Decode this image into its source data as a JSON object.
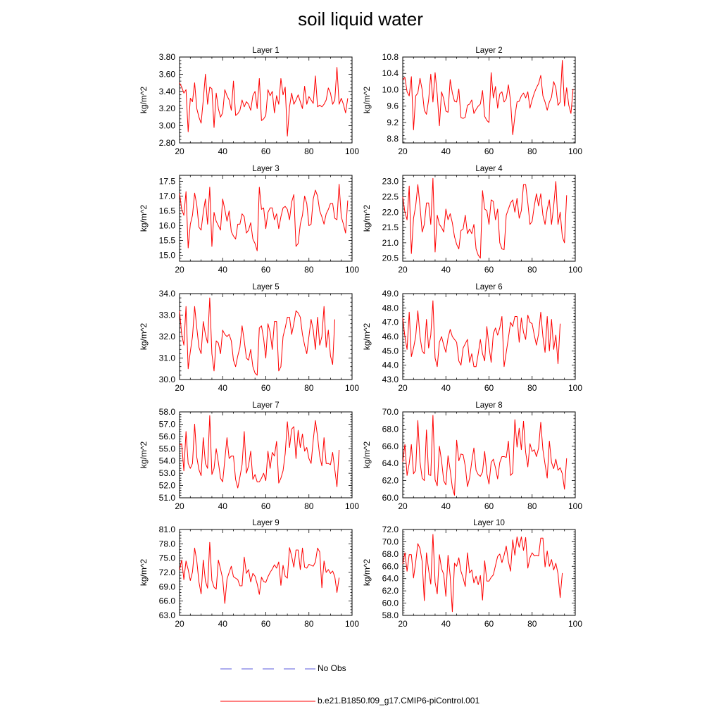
{
  "title": "soil liquid water",
  "legend": [
    {
      "label": "No Obs",
      "color": "#5a5adc",
      "dash": true
    },
    {
      "label": "b.e21.B1850.f09_g17.CMIP6-piControl.001",
      "color": "#ff0000",
      "dash": false
    }
  ],
  "line_color": "#ff0000",
  "chart_data": [
    {
      "type": "line",
      "title": "Layer 1",
      "ylabel": "kg/m^2",
      "xlim": [
        20,
        100
      ],
      "ylim": [
        2.8,
        3.8
      ],
      "xticks": [
        20,
        40,
        60,
        80,
        100
      ],
      "yticks": [
        "2.80",
        "3.00",
        "3.20",
        "3.40",
        "3.60",
        "3.80"
      ],
      "x_start": 20,
      "values": [
        3.5,
        3.45,
        3.38,
        3.42,
        2.93,
        3.32,
        3.28,
        3.5,
        3.2,
        3.1,
        3.03,
        3.3,
        3.6,
        3.25,
        3.45,
        3.43,
        2.98,
        3.38,
        3.2,
        3.1,
        3.15,
        3.42,
        3.35,
        3.3,
        3.18,
        3.52,
        3.12,
        3.14,
        3.18,
        3.3,
        3.22,
        3.28,
        3.25,
        3.18,
        3.35,
        3.4,
        3.2,
        3.55,
        3.06,
        3.08,
        3.12,
        3.42,
        3.35,
        3.4,
        3.15,
        3.35,
        3.25,
        3.55,
        3.36,
        3.45,
        2.88,
        3.22,
        3.38,
        3.25,
        3.3,
        3.36,
        3.28,
        3.2,
        3.46,
        3.25,
        3.34,
        3.3,
        3.26,
        3.58,
        3.22,
        3.24,
        3.22,
        3.25,
        3.3,
        3.44,
        3.38,
        3.25,
        3.3,
        3.68,
        3.25,
        3.32,
        3.25,
        3.15,
        3.32
      ]
    },
    {
      "type": "line",
      "title": "Layer 2",
      "ylabel": "kg/m^2",
      "xlim": [
        20,
        100
      ],
      "ylim": [
        8.7,
        10.8
      ],
      "xticks": [
        20,
        40,
        60,
        80,
        100
      ],
      "yticks": [
        "8.8",
        "9.2",
        "9.6",
        "10.0",
        "10.4",
        "10.8"
      ],
      "x_start": 20,
      "values": [
        10.25,
        10.3,
        9.95,
        9.85,
        10.32,
        9.02,
        9.85,
        9.92,
        10.28,
        10.0,
        9.5,
        9.4,
        9.75,
        10.38,
        9.7,
        10.42,
        9.88,
        9.12,
        9.95,
        9.78,
        9.48,
        9.45,
        10.25,
        9.92,
        9.72,
        9.7,
        10.02,
        9.32,
        9.3,
        9.33,
        9.62,
        9.65,
        9.75,
        9.42,
        9.52,
        9.6,
        9.65,
        9.98,
        9.35,
        9.25,
        9.2,
        10.42,
        9.8,
        10.08,
        9.55,
        9.9,
        9.95,
        9.7,
        9.78,
        10.12,
        9.72,
        8.9,
        9.35,
        9.7,
        9.72,
        9.85,
        9.92,
        9.8,
        9.95,
        9.55,
        9.75,
        9.92,
        10.05,
        10.15,
        10.35,
        9.85,
        9.7,
        9.5,
        9.7,
        9.82,
        10.2,
        10.05,
        9.62,
        9.7,
        10.72,
        9.6,
        10.05,
        9.62,
        9.42,
        10.02
      ]
    },
    {
      "type": "line",
      "title": "Layer 3",
      "ylabel": "kg/m^2",
      "xlim": [
        20,
        100
      ],
      "ylim": [
        14.8,
        17.7
      ],
      "xticks": [
        20,
        40,
        60,
        80,
        100
      ],
      "yticks": [
        "15.0",
        "15.5",
        "16.0",
        "16.5",
        "17.0",
        "17.5"
      ],
      "x_start": 20,
      "values": [
        17.1,
        16.55,
        16.35,
        17.15,
        15.25,
        16.05,
        16.35,
        17.1,
        16.7,
        15.95,
        15.85,
        16.45,
        16.9,
        16.05,
        17.3,
        15.3,
        16.45,
        16.15,
        16.0,
        15.85,
        16.9,
        16.55,
        16.15,
        16.5,
        15.8,
        15.65,
        15.55,
        16.05,
        16.05,
        16.4,
        16.3,
        15.75,
        15.85,
        16.1,
        15.55,
        15.4,
        15.15,
        17.3,
        16.55,
        16.6,
        15.9,
        16.45,
        16.6,
        16.6,
        16.2,
        16.4,
        15.9,
        16.3,
        16.6,
        16.65,
        16.55,
        16.2,
        16.8,
        17.05,
        15.3,
        15.4,
        16.05,
        16.35,
        17.0,
        16.75,
        16.0,
        16.05,
        16.9,
        17.2,
        17.0,
        16.5,
        16.3,
        16.05,
        16.4,
        16.55,
        16.75,
        16.75,
        16.25,
        16.2,
        17.4,
        16.3,
        16.05,
        15.75,
        16.85
      ]
    },
    {
      "type": "line",
      "title": "Layer 4",
      "ylabel": "kg/m^2",
      "xlim": [
        20,
        100
      ],
      "ylim": [
        20.4,
        23.2
      ],
      "xticks": [
        20,
        40,
        60,
        80,
        100
      ],
      "yticks": [
        "20.5",
        "21.0",
        "21.5",
        "22.0",
        "22.5",
        "23.0"
      ],
      "x_start": 20,
      "values": [
        22.5,
        22.0,
        21.75,
        22.85,
        20.65,
        21.8,
        22.2,
        22.9,
        22.2,
        21.35,
        21.6,
        22.3,
        22.3,
        21.6,
        23.1,
        20.7,
        21.9,
        21.6,
        21.5,
        21.35,
        22.1,
        21.75,
        21.95,
        21.65,
        21.2,
        20.95,
        20.8,
        21.4,
        21.45,
        21.9,
        21.3,
        21.45,
        21.3,
        21.6,
        20.8,
        20.6,
        20.5,
        22.7,
        22.1,
        22.05,
        21.6,
        22.4,
        22.35,
        21.75,
        22.1,
        21.0,
        20.8,
        20.78,
        21.9,
        22.1,
        22.3,
        22.4,
        22.0,
        22.45,
        21.8,
        22.05,
        22.9,
        22.9,
        22.3,
        21.6,
        21.7,
        22.2,
        22.6,
        22.2,
        22.6,
        21.9,
        21.6,
        22.1,
        22.4,
        21.6,
        22.2,
        23.0,
        21.6,
        22.0,
        21.2,
        21.0,
        22.55
      ]
    },
    {
      "type": "line",
      "title": "Layer 5",
      "ylabel": "kg/m^2",
      "xlim": [
        20,
        100
      ],
      "ylim": [
        30.0,
        34.0
      ],
      "xticks": [
        20,
        40,
        60,
        80,
        100
      ],
      "yticks": [
        "30.0",
        "31.0",
        "32.0",
        "33.0",
        "34.0"
      ],
      "x_start": 20,
      "values": [
        33.2,
        32.1,
        31.6,
        33.4,
        30.5,
        31.3,
        32.0,
        33.4,
        32.4,
        31.5,
        31.2,
        32.7,
        32.1,
        31.7,
        33.8,
        31.2,
        30.4,
        31.8,
        31.7,
        31.2,
        32.3,
        32.1,
        32.0,
        32.1,
        31.8,
        30.9,
        30.6,
        31.1,
        31.5,
        32.5,
        31.8,
        31.0,
        30.9,
        31.4,
        30.6,
        30.3,
        30.2,
        32.4,
        32.5,
        31.9,
        31.0,
        32.6,
        32.2,
        31.4,
        32.7,
        32.7,
        30.4,
        30.6,
        32.0,
        32.4,
        32.9,
        32.9,
        32.1,
        32.6,
        33.2,
        33.1,
        32.9,
        32.1,
        31.6,
        31.2,
        32.0,
        32.8,
        32.3,
        31.4,
        32.9,
        31.6,
        32.0,
        33.4,
        31.5,
        32.3,
        31.1,
        30.7,
        32.8
      ]
    },
    {
      "type": "line",
      "title": "Layer 6",
      "ylabel": "kg/m^2",
      "xlim": [
        20,
        100
      ],
      "ylim": [
        43.0,
        49.0
      ],
      "xticks": [
        20,
        40,
        60,
        80,
        100
      ],
      "yticks": [
        "43.0",
        "44.0",
        "45.0",
        "46.0",
        "47.0",
        "48.0",
        "49.0"
      ],
      "x_start": 20,
      "values": [
        47.3,
        46.0,
        45.1,
        47.7,
        44.6,
        45.2,
        46.0,
        47.8,
        46.0,
        45.0,
        44.8,
        47.2,
        45.2,
        46.1,
        48.5,
        44.5,
        43.9,
        45.6,
        46.0,
        45.4,
        44.9,
        45.9,
        46.5,
        46.0,
        45.8,
        45.6,
        44.3,
        44.0,
        45.2,
        45.5,
        45.8,
        44.2,
        44.8,
        43.9,
        43.9,
        44.8,
        45.8,
        44.8,
        44.3,
        46.7,
        45.3,
        44.2,
        46.2,
        46.6,
        46.1,
        46.6,
        47.4,
        43.9,
        44.9,
        45.9,
        47.0,
        46.7,
        47.4,
        47.4,
        45.6,
        47.3,
        46.3,
        45.8,
        47.5,
        47.0,
        46.9,
        46.1,
        45.4,
        46.2,
        47.7,
        46.0,
        44.9,
        47.4,
        45.0,
        47.2,
        45.1,
        46.1,
        44.1,
        46.9
      ]
    },
    {
      "type": "line",
      "title": "Layer 7",
      "ylabel": "kg/m^2",
      "xlim": [
        20,
        100
      ],
      "ylim": [
        51.0,
        58.0
      ],
      "xticks": [
        20,
        40,
        60,
        80,
        100
      ],
      "yticks": [
        "51.0",
        "52.0",
        "53.0",
        "54.0",
        "55.0",
        "56.0",
        "57.0",
        "58.0"
      ],
      "x_start": 20,
      "values": [
        55.3,
        55.4,
        53.2,
        56.4,
        53.8,
        53.4,
        53.8,
        57.0,
        54.3,
        53.3,
        52.8,
        55.9,
        53.8,
        53.4,
        57.7,
        52.9,
        53.4,
        55.0,
        53.9,
        52.6,
        52.3,
        54.1,
        55.9,
        54.2,
        54.4,
        54.4,
        52.5,
        51.8,
        52.7,
        53.7,
        56.4,
        53.0,
        53.6,
        54.8,
        52.5,
        52.9,
        52.3,
        52.3,
        52.6,
        53.0,
        52.4,
        54.8,
        53.4,
        54.7,
        54.4,
        55.6,
        52.2,
        52.6,
        53.2,
        54.6,
        57.2,
        55.1,
        56.6,
        56.8,
        54.2,
        56.5,
        55.1,
        56.2,
        54.8,
        55.1,
        54.2,
        53.8,
        55.7,
        57.3,
        56.0,
        54.4,
        53.6,
        55.9,
        53.8,
        53.8,
        53.7,
        54.7,
        53.3,
        51.9,
        54.9
      ]
    },
    {
      "type": "line",
      "title": "Layer 8",
      "ylabel": "kg/m^2",
      "xlim": [
        20,
        100
      ],
      "ylim": [
        60.0,
        70.0
      ],
      "xticks": [
        20,
        40,
        60,
        80,
        100
      ],
      "yticks": [
        "60.0",
        "62.0",
        "64.0",
        "66.0",
        "68.0",
        "70.0"
      ],
      "x_start": 20,
      "values": [
        64.2,
        66.2,
        62.6,
        64.0,
        66.2,
        62.8,
        63.2,
        69.0,
        64.2,
        62.3,
        62.0,
        67.9,
        62.7,
        62.6,
        69.6,
        62.1,
        61.4,
        66.0,
        64.3,
        62.0,
        61.5,
        64.9,
        63.2,
        61.2,
        60.3,
        66.7,
        64.3,
        65.1,
        65.0,
        63.7,
        61.3,
        62.3,
        64.2,
        65.8,
        63.2,
        62.7,
        62.5,
        63.0,
        65.4,
        62.8,
        61.6,
        64.1,
        64.5,
        63.5,
        62.2,
        64.1,
        64.8,
        64.8,
        64.7,
        66.6,
        62.6,
        62.9,
        69.1,
        65.9,
        68.1,
        65.6,
        68.9,
        65.3,
        63.6,
        66.3,
        65.4,
        65.6,
        64.8,
        65.8,
        68.8,
        65.6,
        63.9,
        62.3,
        66.6,
        64.1,
        63.4,
        64.5,
        63.2,
        63.5,
        62.8,
        61.0,
        64.6
      ]
    },
    {
      "type": "line",
      "title": "Layer 9",
      "ylabel": "kg/m^2",
      "xlim": [
        20,
        100
      ],
      "ylim": [
        63.0,
        81.0
      ],
      "xticks": [
        20,
        40,
        60,
        80,
        100
      ],
      "yticks": [
        "63.0",
        "66.0",
        "69.0",
        "72.0",
        "75.0",
        "78.0",
        "81.0"
      ],
      "x_start": 20,
      "values": [
        72.5,
        74.6,
        70.5,
        74.4,
        72.6,
        70.3,
        72.1,
        77.1,
        74.4,
        70.0,
        67.5,
        74.6,
        70.2,
        68.7,
        78.3,
        70.3,
        68.9,
        68.5,
        74.6,
        72.7,
        70.7,
        65.5,
        70.6,
        72.0,
        73.3,
        71.1,
        70.8,
        70.5,
        69.2,
        69.2,
        75.2,
        71.8,
        72.6,
        70.0,
        71.8,
        71.2,
        69.6,
        67.4,
        71.0,
        70.1,
        69.9,
        71.1,
        72.0,
        72.7,
        73.6,
        72.9,
        74.2,
        69.3,
        73.5,
        71.2,
        70.8,
        77.2,
        75.4,
        73.1,
        76.7,
        76.7,
        72.6,
        77.1,
        73.1,
        72.9,
        73.7,
        73.5,
        73.3,
        74.2,
        77.1,
        76.3,
        68.8,
        74.4,
        72.0,
        72.6,
        71.8,
        72.3,
        71.1,
        67.8,
        70.9
      ]
    },
    {
      "type": "line",
      "title": "Layer 10",
      "ylabel": "kg/m^2",
      "xlim": [
        20,
        100
      ],
      "ylim": [
        58.0,
        72.0
      ],
      "xticks": [
        20,
        40,
        60,
        80,
        100
      ],
      "yticks": [
        "58.0",
        "60.0",
        "62.0",
        "64.0",
        "66.0",
        "68.0",
        "70.0",
        "72.0"
      ],
      "x_start": 20,
      "values": [
        66.4,
        68.2,
        65.2,
        67.9,
        67.9,
        64.1,
        66.7,
        69.7,
        68.9,
        66.8,
        60.4,
        68.2,
        65.4,
        63.1,
        71.2,
        63.4,
        61.5,
        67.9,
        65.6,
        64.7,
        61.1,
        67.8,
        64.4,
        58.6,
        66.5,
        66.0,
        67.4,
        65.2,
        64.1,
        62.7,
        68.2,
        64.9,
        65.4,
        63.3,
        64.4,
        63.0,
        64.5,
        60.5,
        66.9,
        63.6,
        63.6,
        64.2,
        64.6,
        66.1,
        67.6,
        68.0,
        66.6,
        67.8,
        69.3,
        66.8,
        65.2,
        70.3,
        67.8,
        70.8,
        69.1,
        70.8,
        68.6,
        70.7,
        65.7,
        67.4,
        68.2,
        67.7,
        67.8,
        67.7,
        70.6,
        70.6,
        65.9,
        68.5,
        66.0,
        67.1,
        65.4,
        66.5,
        64.8,
        60.9,
        64.9
      ]
    }
  ]
}
